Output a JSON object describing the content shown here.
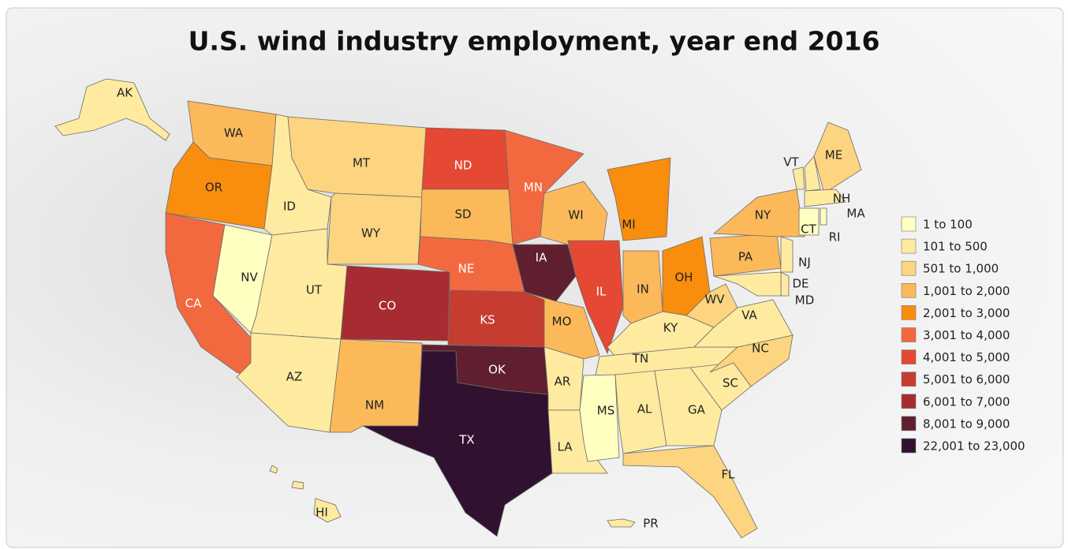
{
  "title": "U.S. wind industry employment, year end 2016",
  "legend": [
    {
      "label": "1 to 100",
      "color": "#ffffc2"
    },
    {
      "label": "101 to 500",
      "color": "#feeba0"
    },
    {
      "label": "501 to 1,000",
      "color": "#fdd47f"
    },
    {
      "label": "1,001 to 2,000",
      "color": "#fcb95a"
    },
    {
      "label": "2,001 to 3,000",
      "color": "#f98d0e"
    },
    {
      "label": "3,001 to 4,000",
      "color": "#f3693f"
    },
    {
      "label": "4,001 to 5,000",
      "color": "#e54833"
    },
    {
      "label": "5,001 to 6,000",
      "color": "#c63c31"
    },
    {
      "label": "6,001 to 7,000",
      "color": "#a72c31"
    },
    {
      "label": "8,001 to 9,000",
      "color": "#5f1f2e"
    },
    {
      "label": "22,001 to 23,000",
      "color": "#301230"
    }
  ],
  "states": [
    {
      "label": "AK",
      "level": 1
    },
    {
      "label": "HI",
      "level": 1
    },
    {
      "label": "WA",
      "level": 3
    },
    {
      "label": "OR",
      "level": 4
    },
    {
      "label": "CA",
      "level": 5
    },
    {
      "label": "NV",
      "level": 0
    },
    {
      "label": "ID",
      "level": 1
    },
    {
      "label": "MT",
      "level": 2
    },
    {
      "label": "WY",
      "level": 2
    },
    {
      "label": "UT",
      "level": 1
    },
    {
      "label": "AZ",
      "level": 1
    },
    {
      "label": "CO",
      "level": 8
    },
    {
      "label": "NM",
      "level": 3
    },
    {
      "label": "ND",
      "level": 6
    },
    {
      "label": "SD",
      "level": 3
    },
    {
      "label": "NE",
      "level": 5
    },
    {
      "label": "KS",
      "level": 7
    },
    {
      "label": "OK",
      "level": 9
    },
    {
      "label": "TX",
      "level": 10
    },
    {
      "label": "MN",
      "level": 5
    },
    {
      "label": "IA",
      "level": 9
    },
    {
      "label": "MO",
      "level": 3
    },
    {
      "label": "AR",
      "level": 1
    },
    {
      "label": "LA",
      "level": 1
    },
    {
      "label": "WI",
      "level": 3
    },
    {
      "label": "IL",
      "level": 6
    },
    {
      "label": "MI",
      "level": 4
    },
    {
      "label": "IN",
      "level": 3
    },
    {
      "label": "OH",
      "level": 4
    },
    {
      "label": "KY",
      "level": 1
    },
    {
      "label": "TN",
      "level": 1
    },
    {
      "label": "MS",
      "level": 0
    },
    {
      "label": "AL",
      "level": 1
    },
    {
      "label": "GA",
      "level": 1
    },
    {
      "label": "FL",
      "level": 2
    },
    {
      "label": "SC",
      "level": 1
    },
    {
      "label": "NC",
      "level": 2
    },
    {
      "label": "VA",
      "level": 1
    },
    {
      "label": "WV",
      "level": 2
    },
    {
      "label": "PA",
      "level": 3
    },
    {
      "label": "NY",
      "level": 3
    },
    {
      "label": "NJ",
      "level": 1
    },
    {
      "label": "DE",
      "level": 1
    },
    {
      "label": "MD",
      "level": 1
    },
    {
      "label": "VT",
      "level": 1
    },
    {
      "label": "NH",
      "level": 1
    },
    {
      "label": "ME",
      "level": 2
    },
    {
      "label": "MA",
      "level": 1
    },
    {
      "label": "CT",
      "level": 0
    },
    {
      "label": "RI",
      "level": 0
    },
    {
      "label": "PR",
      "level": 1
    }
  ]
}
